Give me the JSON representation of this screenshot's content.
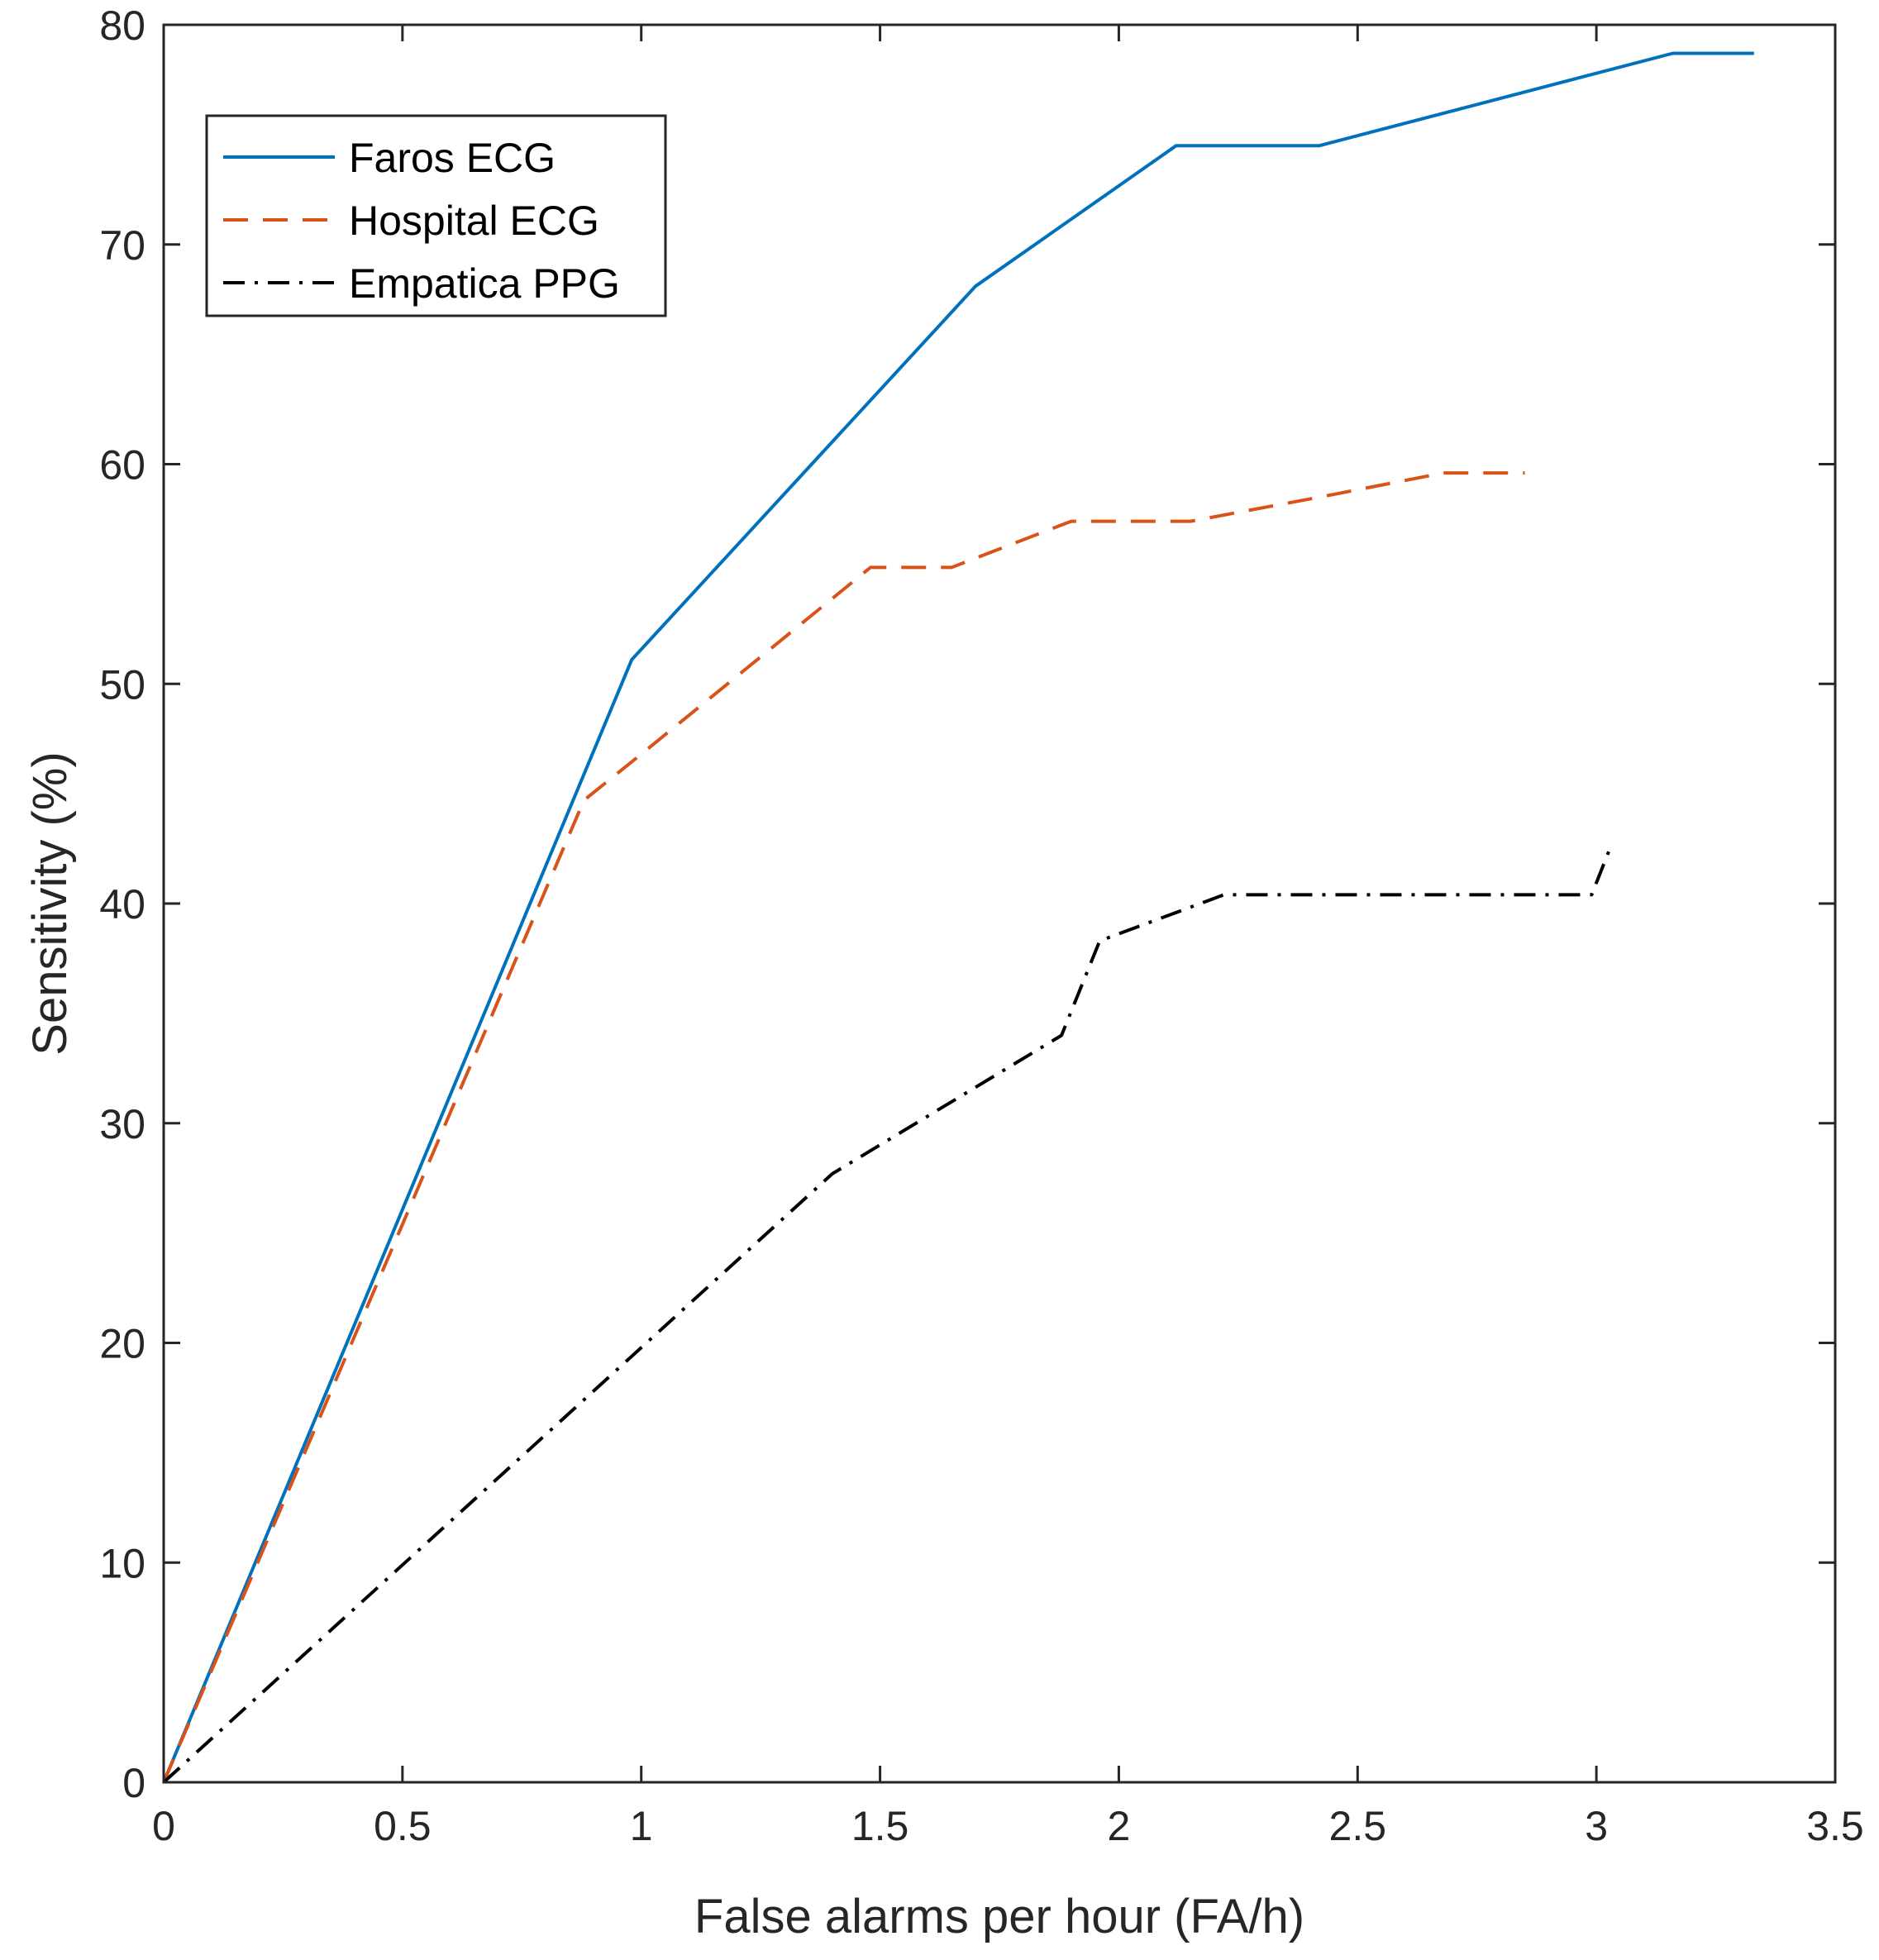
{
  "chart_data": {
    "type": "line",
    "title": "",
    "xlabel": "False alarms per hour (FA/h)",
    "ylabel": "Sensitivity (%)",
    "xlim": [
      0,
      3.5
    ],
    "ylim": [
      0,
      80
    ],
    "xticks": [
      0,
      0.5,
      1,
      1.5,
      2,
      2.5,
      3,
      3.5
    ],
    "xtick_labels": [
      "0",
      "0.5",
      "1",
      "1.5",
      "2",
      "2.5",
      "3",
      "3.5"
    ],
    "yticks": [
      0,
      10,
      20,
      30,
      40,
      50,
      60,
      70,
      80
    ],
    "ytick_labels": [
      "0",
      "10",
      "20",
      "30",
      "40",
      "50",
      "60",
      "70",
      "80"
    ],
    "grid": false,
    "legend_position": "top-left",
    "series": [
      {
        "name": "Faros ECG",
        "color": "#0072BD",
        "style": "solid",
        "x": [
          0,
          0.98,
          1.7,
          2.12,
          2.42,
          3.16,
          3.33
        ],
        "y": [
          0,
          51.1,
          68.1,
          74.5,
          74.5,
          78.7,
          78.7
        ]
      },
      {
        "name": "Hospital ECG",
        "color": "#D95319",
        "style": "dashed",
        "x": [
          0,
          0.88,
          1.0,
          1.48,
          1.65,
          1.9,
          2.15,
          2.42,
          2.68,
          2.85
        ],
        "y": [
          0,
          44.7,
          46.8,
          55.3,
          55.3,
          57.4,
          57.4,
          58.5,
          59.6,
          59.6
        ]
      },
      {
        "name": "Empatica PPG",
        "color": "#000000",
        "style": "dashdot",
        "x": [
          0,
          1.4,
          1.88,
          1.96,
          2.22,
          2.99,
          3.03
        ],
        "y": [
          0,
          27.7,
          34.0,
          38.3,
          40.4,
          40.4,
          42.6
        ]
      }
    ]
  }
}
